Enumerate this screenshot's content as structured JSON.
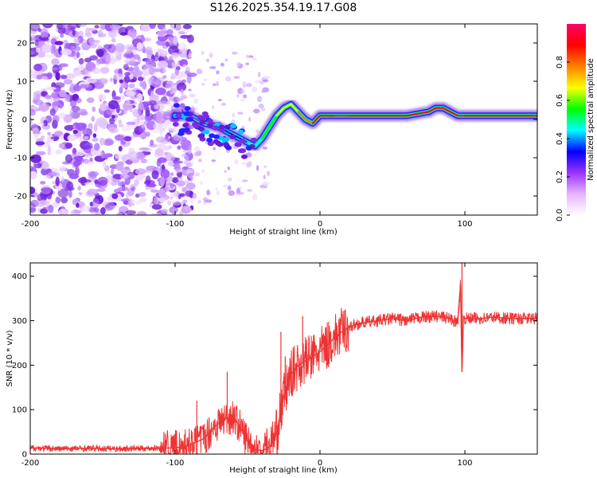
{
  "figure_title": "S126.2025.354.19.17.G08",
  "chart_data": [
    {
      "type": "heatmap",
      "title": "S126.2025.354.19.17.G08",
      "xlabel": "Height of straight line (km)",
      "ylabel": "Frequency (Hz)",
      "xlim": [
        -200,
        150
      ],
      "ylim": [
        -25,
        25
      ],
      "xticks": [
        -200,
        -100,
        0,
        100
      ],
      "yticks": [
        20,
        10,
        0,
        -10,
        -20
      ],
      "colorbar": {
        "label": "Normalized spectral amplitude",
        "range": [
          0,
          1
        ],
        "ticks": [
          "0.0",
          "0.2",
          "0.4",
          "0.6",
          "0.8"
        ],
        "colors": [
          "#ffffff",
          "#e6b3ff",
          "#9933ff",
          "#0000ff",
          "#00ffff",
          "#00ff00",
          "#ffff00",
          "#ff8000",
          "#ff0000",
          "#ff0066"
        ]
      },
      "ridge": {
        "x": [
          -100,
          -90,
          -80,
          -70,
          -60,
          -50,
          -45,
          -40,
          -35,
          -30,
          -25,
          -20,
          -15,
          -10,
          -5,
          0,
          10,
          20,
          40,
          60,
          75,
          80,
          85,
          90,
          95,
          100,
          120,
          150
        ],
        "y": [
          1,
          1,
          -1,
          -2,
          -4,
          -6,
          -7,
          -5,
          -2,
          1,
          3,
          4,
          2,
          0,
          -1,
          1,
          1,
          1,
          1,
          1,
          2,
          3,
          3,
          2,
          1,
          1,
          1,
          1
        ],
        "amplitude": [
          0.15,
          0.2,
          0.25,
          0.3,
          0.35,
          0.4,
          0.45,
          0.5,
          0.55,
          0.6,
          0.65,
          0.7,
          0.7,
          0.75,
          0.8,
          0.9,
          0.95,
          0.95,
          0.9,
          0.95,
          0.9,
          0.85,
          0.85,
          0.9,
          0.95,
          0.95,
          0.9,
          0.95
        ]
      },
      "noise_region": {
        "x_from": -200,
        "x_to": -100,
        "amplitude": 0.1
      }
    },
    {
      "type": "line",
      "xlabel": "Height of straight line (km)",
      "ylabel": "SNR (10 * v/v)",
      "xlim": [
        -200,
        150
      ],
      "ylim": [
        0,
        430
      ],
      "xticks": [
        -200,
        -100,
        0,
        100
      ],
      "yticks": [
        0,
        100,
        200,
        300,
        400
      ],
      "color": "#ee3333",
      "series": [
        {
          "name": "SNR",
          "x": [
            -200,
            -180,
            -160,
            -140,
            -120,
            -100,
            -90,
            -80,
            -75,
            -70,
            -65,
            -60,
            -55,
            -50,
            -45,
            -40,
            -35,
            -30,
            -28,
            -25,
            -20,
            -15,
            -10,
            -5,
            0,
            5,
            10,
            15,
            20,
            25,
            30,
            40,
            50,
            60,
            70,
            80,
            90,
            95,
            97,
            98,
            99,
            100,
            105,
            110,
            120,
            130,
            140,
            150
          ],
          "y": [
            14,
            12,
            13,
            12,
            13,
            14,
            20,
            35,
            55,
            70,
            80,
            85,
            60,
            30,
            10,
            8,
            15,
            45,
            80,
            130,
            180,
            200,
            210,
            220,
            230,
            245,
            262,
            275,
            285,
            292,
            296,
            300,
            305,
            300,
            308,
            310,
            305,
            295,
            380,
            185,
            310,
            305,
            305,
            305,
            308,
            305,
            305,
            305
          ]
        }
      ],
      "spikes": [
        {
          "x": -64,
          "y": 185
        },
        {
          "x": -85,
          "y": 120
        },
        {
          "x": -27,
          "y": 275
        },
        {
          "x": -12,
          "y": 310
        },
        {
          "x": -24,
          "y": 220
        },
        {
          "x": 98,
          "y": 430
        },
        {
          "x": 98,
          "y": 185
        }
      ]
    }
  ]
}
